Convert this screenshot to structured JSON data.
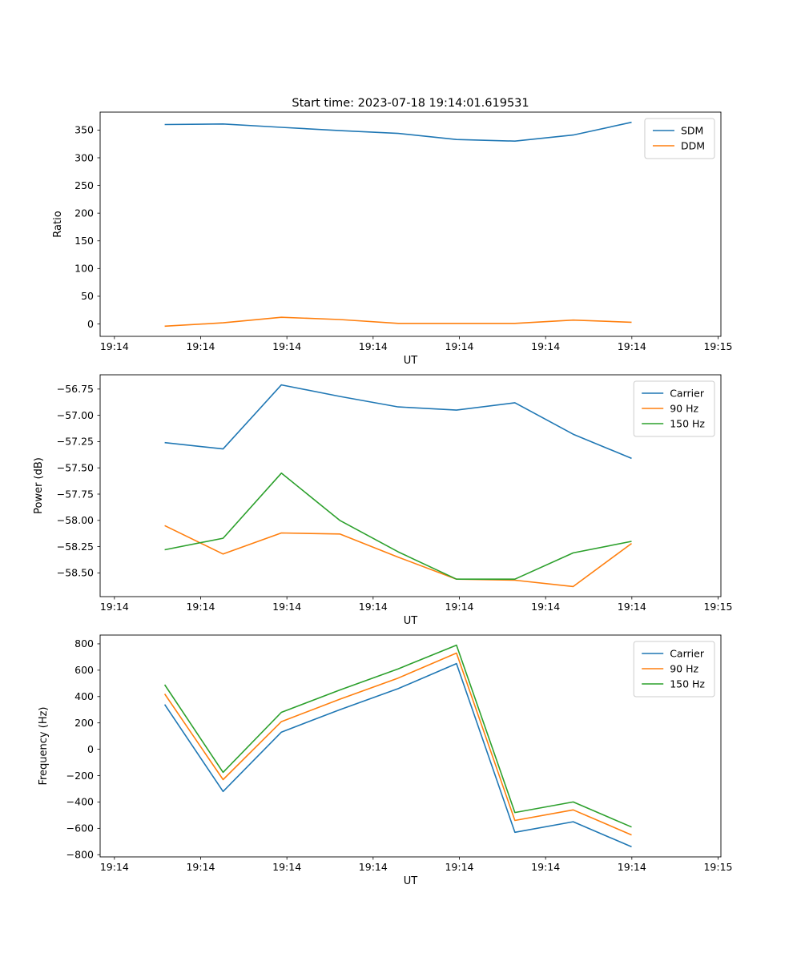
{
  "figure": {
    "title": "Start time: 2023-07-18 19:14:01.619531",
    "palette": {
      "blue": "#1f77b4",
      "orange": "#ff7f0e",
      "green": "#2ca02c"
    }
  },
  "chart_data": [
    {
      "name": "ratio",
      "type": "line",
      "xlabel": "UT",
      "ylabel": "Ratio",
      "x": [
        5,
        10.8,
        16.6,
        22.4,
        28.2,
        34,
        39.8,
        45.6,
        51.4
      ],
      "xlim": [
        -1.42,
        60.28
      ],
      "x_ticks": [
        0,
        8.571,
        17.143,
        25.714,
        34.286,
        42.857,
        51.429,
        60
      ],
      "x_tick_labels": [
        "19:14",
        "19:14",
        "19:14",
        "19:14",
        "19:14",
        "19:14",
        "19:14",
        "19:15"
      ],
      "ylim": [
        -22.4,
        382.4
      ],
      "y_ticks": [
        0,
        50,
        100,
        150,
        200,
        250,
        300,
        350
      ],
      "y_tick_labels": [
        "0",
        "50",
        "100",
        "150",
        "200",
        "250",
        "300",
        "350"
      ],
      "legend_position": "upper right",
      "series": [
        {
          "name": "SDM",
          "color": "#1f77b4",
          "values": [
            360,
            361,
            355,
            349,
            344,
            333,
            330,
            341,
            364
          ]
        },
        {
          "name": "DDM",
          "color": "#ff7f0e",
          "values": [
            -4,
            2,
            12,
            8,
            1,
            1,
            1,
            7,
            3
          ]
        }
      ]
    },
    {
      "name": "power",
      "type": "line",
      "xlabel": "UT",
      "ylabel": "Power (dB)",
      "x": [
        5,
        10.8,
        16.6,
        22.4,
        28.2,
        34,
        39.8,
        45.6,
        51.4
      ],
      "xlim": [
        -1.42,
        60.28
      ],
      "x_ticks": [
        0,
        8.571,
        17.143,
        25.714,
        34.286,
        42.857,
        51.429,
        60
      ],
      "x_tick_labels": [
        "19:14",
        "19:14",
        "19:14",
        "19:14",
        "19:14",
        "19:14",
        "19:14",
        "19:15"
      ],
      "ylim": [
        -58.726,
        -56.614
      ],
      "y_ticks": [
        -58.5,
        -58.25,
        -58.0,
        -57.75,
        -57.5,
        -57.25,
        -57.0,
        -56.75
      ],
      "y_tick_labels": [
        "−58.50",
        "−58.25",
        "−58.00",
        "−57.75",
        "−57.50",
        "−57.25",
        "−57.00",
        "−56.75"
      ],
      "legend_position": "upper right",
      "series": [
        {
          "name": "Carrier",
          "color": "#1f77b4",
          "values": [
            -57.26,
            -57.32,
            -56.71,
            -56.82,
            -56.92,
            -56.95,
            -56.88,
            -57.18,
            -57.41
          ]
        },
        {
          "name": "90 Hz",
          "color": "#ff7f0e",
          "values": [
            -58.05,
            -58.32,
            -58.12,
            -58.13,
            -58.35,
            -58.56,
            -58.57,
            -58.63,
            -58.22
          ]
        },
        {
          "name": "150 Hz",
          "color": "#2ca02c",
          "values": [
            -58.28,
            -58.17,
            -57.55,
            -58.0,
            -58.3,
            -58.56,
            -58.56,
            -58.31,
            -58.2
          ]
        }
      ]
    },
    {
      "name": "frequency",
      "type": "line",
      "xlabel": "UT",
      "ylabel": "Frequency (Hz)",
      "x": [
        5,
        10.8,
        16.6,
        22.4,
        28.2,
        34,
        39.8,
        45.6,
        51.4
      ],
      "xlim": [
        -1.42,
        60.28
      ],
      "x_ticks": [
        0,
        8.571,
        17.143,
        25.714,
        34.286,
        42.857,
        51.429,
        60
      ],
      "x_tick_labels": [
        "19:14",
        "19:14",
        "19:14",
        "19:14",
        "19:14",
        "19:14",
        "19:14",
        "19:15"
      ],
      "ylim": [
        -816.5,
        866.5
      ],
      "y_ticks": [
        -800,
        -600,
        -400,
        -200,
        0,
        200,
        400,
        600,
        800
      ],
      "y_tick_labels": [
        "−800",
        "−600",
        "−400",
        "−200",
        "0",
        "200",
        "400",
        "600",
        "800"
      ],
      "legend_position": "upper right",
      "series": [
        {
          "name": "Carrier",
          "color": "#1f77b4",
          "values": [
            340,
            -320,
            130,
            300,
            460,
            650,
            -630,
            -550,
            -740
          ]
        },
        {
          "name": "90 Hz",
          "color": "#ff7f0e",
          "values": [
            420,
            -230,
            210,
            380,
            540,
            730,
            -540,
            -460,
            -650
          ]
        },
        {
          "name": "150 Hz",
          "color": "#2ca02c",
          "values": [
            490,
            -175,
            280,
            450,
            610,
            790,
            -480,
            -400,
            -590
          ]
        }
      ]
    }
  ]
}
